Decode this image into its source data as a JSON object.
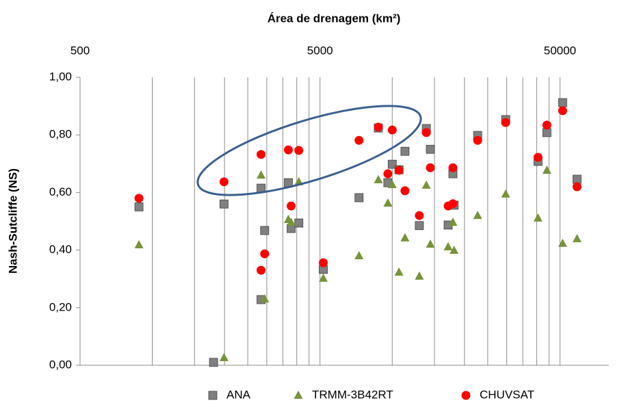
{
  "chart_data": {
    "type": "scatter",
    "title": "Área de drenagem (km²)",
    "ylabel": "Nash-Sutcliffe (NS)",
    "xscale": "log",
    "xlim": [
      500,
      80000
    ],
    "xticks": [
      500,
      5000,
      50000
    ],
    "xgrid": [
      1000,
      1500,
      2000,
      2500,
      3000,
      3500,
      4000,
      4500,
      5000,
      10000,
      15000,
      20000,
      25000,
      30000,
      35000,
      40000,
      45000,
      50000
    ],
    "ylim": [
      0,
      1
    ],
    "yticks": [
      {
        "value": 0,
        "label": "0,00"
      },
      {
        "value": 0.2,
        "label": "0,20"
      },
      {
        "value": 0.4,
        "label": "0,40"
      },
      {
        "value": 0.6,
        "label": "0,60"
      },
      {
        "value": 0.8,
        "label": "0,80"
      },
      {
        "value": 1,
        "label": "1,00"
      }
    ],
    "legend": "bottom",
    "series": [
      {
        "name": "ANA",
        "color": "#808080",
        "marker": "square",
        "x": [
          880,
          1800,
          1990,
          2840,
          2840,
          2940,
          3690,
          3790,
          4080,
          5160,
          7270,
          8750,
          9590,
          10000,
          10670,
          11300,
          12970,
          13870,
          14420,
          17100,
          17900,
          18100,
          22700,
          29700,
          40500,
          44100,
          51300,
          58900
        ],
        "values": [
          0.55,
          0.01,
          0.56,
          0.615,
          0.228,
          0.468,
          0.634,
          0.475,
          0.494,
          0.333,
          0.582,
          0.824,
          0.634,
          0.698,
          0.679,
          0.743,
          0.485,
          0.822,
          0.75,
          0.487,
          0.665,
          0.556,
          0.798,
          0.853,
          0.708,
          0.808,
          0.912,
          0.646
        ]
      },
      {
        "name": "TRMM-3B42RT",
        "color": "#77933c",
        "marker": "triangle",
        "x": [
          880,
          1990,
          2840,
          2940,
          3690,
          3790,
          4080,
          5160,
          7270,
          8750,
          9590,
          10000,
          10670,
          11300,
          12970,
          13870,
          14420,
          17100,
          17900,
          18100,
          22700,
          29700,
          40500,
          44100,
          51300,
          58900
        ],
        "values": [
          0.418,
          0.026,
          0.66,
          0.23,
          0.506,
          0.496,
          0.637,
          0.302,
          0.38,
          0.644,
          0.563,
          0.627,
          0.323,
          0.442,
          0.309,
          0.625,
          0.42,
          0.411,
          0.496,
          0.399,
          0.52,
          0.594,
          0.511,
          0.677,
          0.423,
          0.439
        ]
      },
      {
        "name": "CHUVSAT",
        "color": "#ff0000",
        "marker": "circle",
        "x": [
          880,
          1990,
          2840,
          2840,
          2940,
          3690,
          3790,
          4080,
          5160,
          7270,
          8750,
          9590,
          10000,
          10670,
          11300,
          12970,
          13870,
          14420,
          17100,
          17900,
          17900,
          22700,
          29700,
          40500,
          44100,
          51300,
          58900
        ],
        "values": [
          0.58,
          0.637,
          0.732,
          0.33,
          0.387,
          0.748,
          0.553,
          0.746,
          0.356,
          0.781,
          0.827,
          0.665,
          0.817,
          0.677,
          0.606,
          0.52,
          0.808,
          0.686,
          0.553,
          0.561,
          0.686,
          0.781,
          0.843,
          0.722,
          0.834,
          0.884,
          0.62
        ]
      }
    ]
  }
}
